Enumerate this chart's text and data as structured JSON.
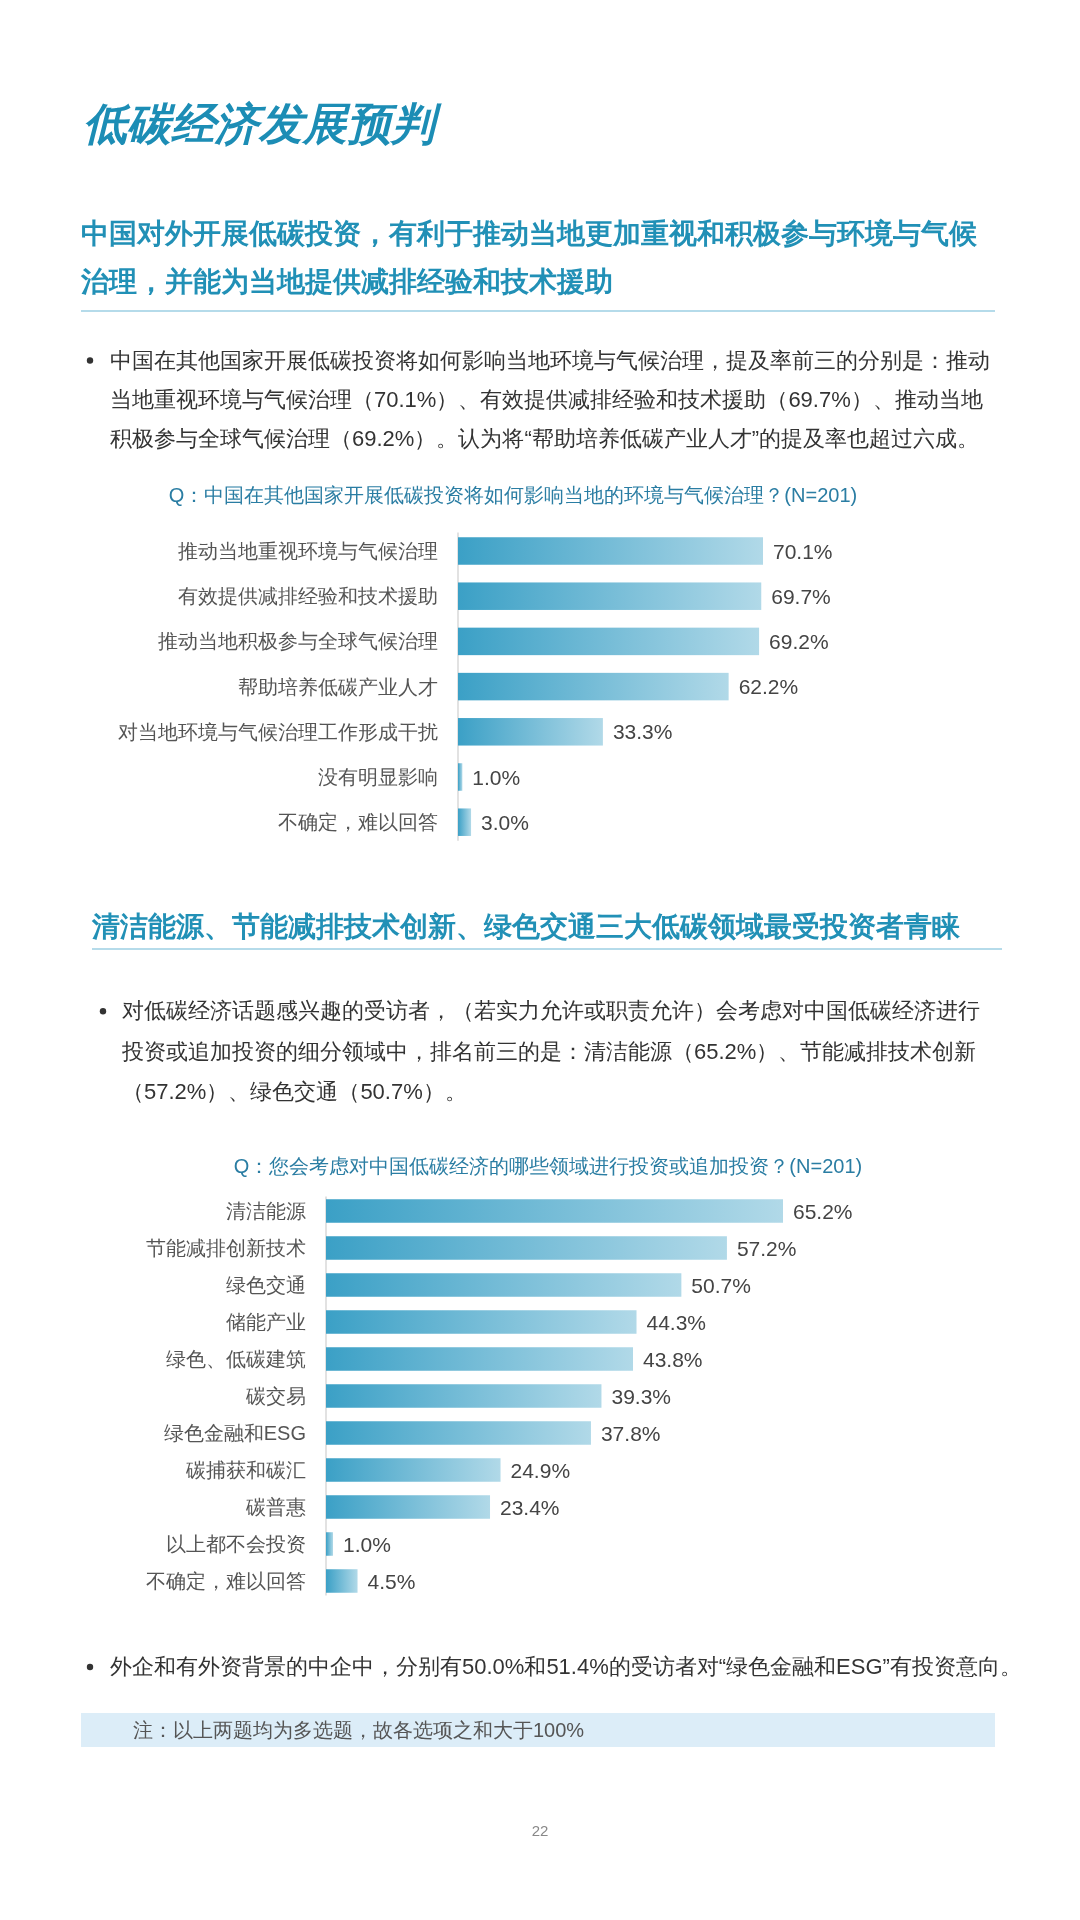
{
  "chart_data": [
    {
      "type": "bar",
      "orientation": "horizontal",
      "title": "Q：中国在其他国家开展低碳投资将如何影响当地的环境与气候治理？(N=201)",
      "categories": [
        "推动当地重视环境与气候治理",
        "有效提供减排经验和技术援助",
        "推动当地积极参与全球气候治理",
        "帮助培养低碳产业人才",
        "对当地环境与气候治理工作形成干扰",
        "没有明显影响",
        "不确定，难以回答"
      ],
      "values": [
        70.1,
        69.7,
        69.2,
        62.2,
        33.3,
        1.0,
        3.0
      ],
      "value_labels": [
        "70.1%",
        "69.7%",
        "69.2%",
        "62.2%",
        "33.3%",
        "1.0%",
        "3.0%"
      ],
      "color": "#3ba0c6",
      "annotations": [
        "低碳经济发展预判",
        "中国对外开展低碳投资，有利于推动当地更加重视和积极参与环境与气候治理，并能为当地提供减排经验和技术援助",
        "中国在其他国家开展低碳投资将如何影响当地环境与气候治理，提及率前三的分别是：推动当地重视环境与气候治理（70.1%）、有效提供减排经验和技术援助（69.7%）、推动当地积极参与全球气候治理（69.2%）。认为将“帮助培养低碳产业人才”的提及率也超过六成。"
      ]
    },
    {
      "type": "bar",
      "orientation": "horizontal",
      "title": "Q：您会考虑对中国低碳经济的哪些领域进行投资或追加投资？(N=201)",
      "categories": [
        "清洁能源",
        "节能减排创新技术",
        "绿色交通",
        "储能产业",
        "绿色、低碳建筑",
        "碳交易",
        "绿色金融和ESG",
        "碳捕获和碳汇",
        "碳普惠",
        "以上都不会投资",
        "不确定，难以回答"
      ],
      "values": [
        65.2,
        57.2,
        50.7,
        44.3,
        43.8,
        39.3,
        37.8,
        24.9,
        23.4,
        1.0,
        4.5
      ],
      "value_labels": [
        "65.2%",
        "57.2%",
        "50.7%",
        "44.3%",
        "43.8%",
        "39.3%",
        "37.8%",
        "24.9%",
        "23.4%",
        "1.0%",
        "4.5%"
      ],
      "color": "#3ba0c6",
      "annotations": [
        "清洁能源、节能减排技术创新、绿色交通三大低碳领域最受投资者青睐",
        "对低碳经济话题感兴趣的受访者，（若实力允许或职责允许）会考虑对中国低碳经济进行投资或追加投资的细分领域中，排名前三的是：清洁能源（65.2%）、节能减排技术创新（57.2%）、绿色交通（50.7%）。",
        "外企和有外资背景的中企中，分别有50.0%和51.4%的受访者对“绿色金融和ESG”有投资意向。",
        "注：以上两题均为多选题，故各选项之和大于100%",
        "22"
      ]
    }
  ]
}
